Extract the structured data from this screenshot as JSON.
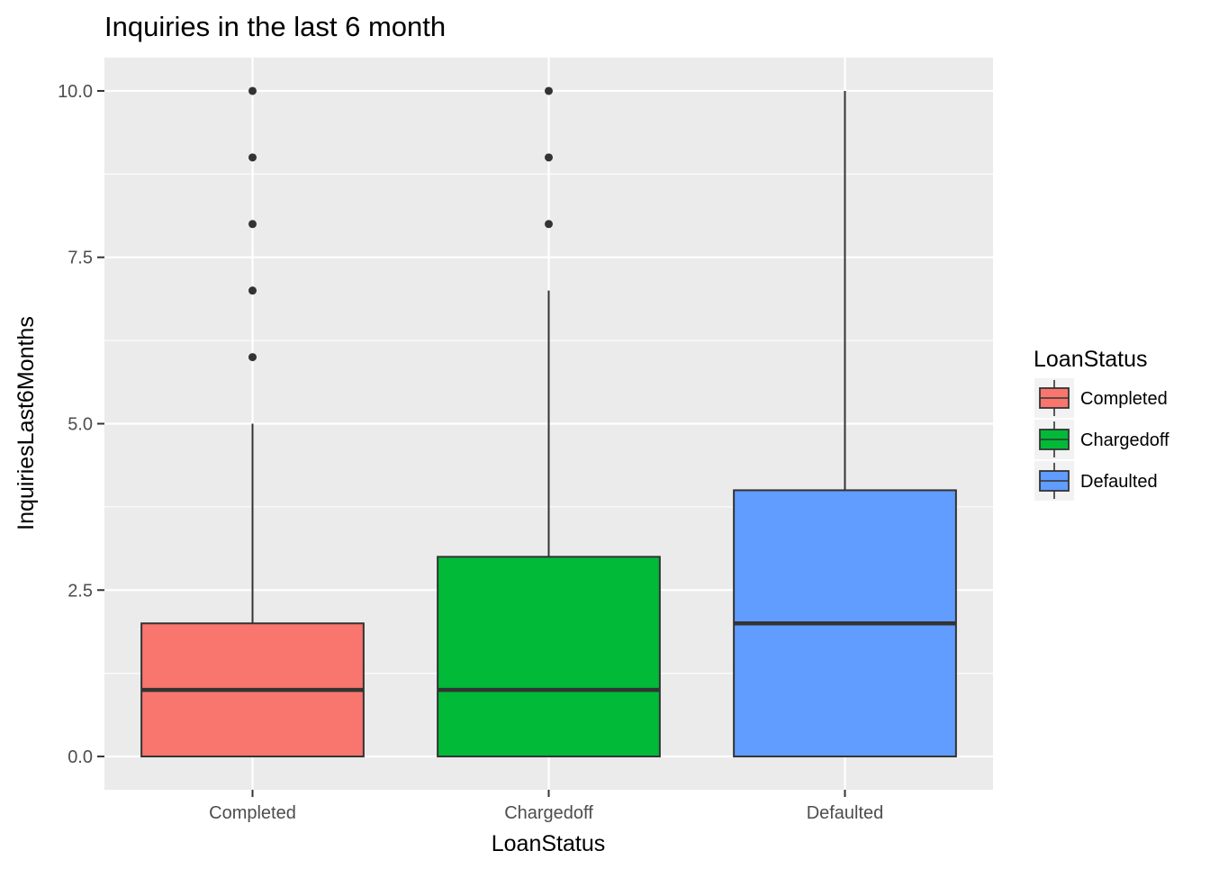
{
  "chart_data": {
    "type": "boxplot",
    "title": "Inquiries in the last 6 month",
    "xlabel": "LoanStatus",
    "ylabel": "InquiriesLast6Months",
    "ylim": [
      -0.5,
      10.5
    ],
    "yticks": [
      0.0,
      2.5,
      5.0,
      7.5,
      10.0
    ],
    "ytick_labels": [
      "0.0",
      "2.5",
      "5.0",
      "7.5",
      "10.0"
    ],
    "categories": [
      "Completed",
      "Chargedoff",
      "Defaulted"
    ],
    "boxes": [
      {
        "category": "Completed",
        "min": 0,
        "q1": 0,
        "median": 1,
        "q3": 2,
        "max": 5,
        "outliers": [
          6,
          7,
          8,
          9,
          10
        ],
        "color": "#F8766D"
      },
      {
        "category": "Chargedoff",
        "min": 0,
        "q1": 0,
        "median": 1,
        "q3": 3,
        "max": 7,
        "outliers": [
          8,
          9,
          10
        ],
        "color": "#00BA38"
      },
      {
        "category": "Defaulted",
        "min": 0,
        "q1": 0,
        "median": 2,
        "q3": 4,
        "max": 10,
        "outliers": [],
        "color": "#619CFF"
      }
    ],
    "legend": {
      "title": "LoanStatus",
      "position": "right",
      "items": [
        {
          "label": "Completed",
          "color": "#F8766D"
        },
        {
          "label": "Chargedoff",
          "color": "#00BA38"
        },
        {
          "label": "Defaulted",
          "color": "#619CFF"
        }
      ]
    },
    "grid": true,
    "panel_background": "#EBEBEB",
    "grid_color": "#FFFFFF",
    "line_color": "#333333"
  }
}
